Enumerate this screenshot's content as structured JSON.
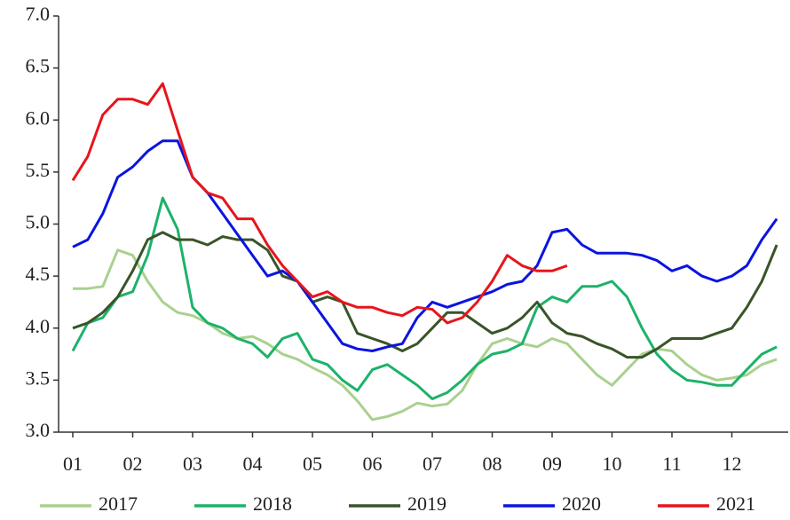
{
  "chart_data": {
    "type": "line",
    "categories": [
      "01",
      null,
      null,
      null,
      "02",
      null,
      null,
      null,
      "03",
      null,
      null,
      null,
      "04",
      null,
      null,
      null,
      "05",
      null,
      null,
      null,
      "06",
      null,
      null,
      null,
      "07",
      null,
      null,
      null,
      "08",
      null,
      null,
      null,
      "09",
      null,
      null,
      null,
      "10",
      null,
      null,
      null,
      "11",
      null,
      null,
      null,
      "12",
      null,
      null,
      null
    ],
    "ylim": [
      3,
      7
    ],
    "yticks": [
      {
        "value": 3,
        "label": "3.0"
      },
      3.5,
      {
        "value": 4,
        "label": "4.0"
      },
      4.5,
      {
        "value": 5,
        "label": "5.0"
      },
      5.5,
      {
        "value": 6,
        "label": "6.0"
      },
      6.5,
      {
        "value": 7,
        "label": "7.0"
      }
    ],
    "legend": "bottom",
    "series": [
      {
        "name": "2017",
        "color": "#a9d18e",
        "values": [
          4.38,
          4.38,
          4.4,
          4.75,
          4.7,
          4.45,
          4.25,
          4.15,
          4.12,
          4.05,
          3.95,
          3.9,
          3.92,
          3.85,
          3.75,
          3.7,
          3.62,
          3.55,
          3.45,
          3.3,
          3.12,
          3.15,
          3.2,
          3.28,
          3.25,
          3.27,
          3.4,
          3.65,
          3.85,
          3.9,
          3.85,
          3.82,
          3.9,
          3.85,
          3.7,
          3.55,
          3.45,
          3.6,
          3.75,
          3.8,
          3.78,
          3.65,
          3.55,
          3.5,
          3.52,
          3.55,
          3.65,
          3.7
        ]
      },
      {
        "name": "2018",
        "color": "#1db26a",
        "values": [
          3.78,
          4.05,
          4.1,
          4.3,
          4.35,
          4.7,
          5.25,
          4.95,
          4.2,
          4.05,
          4.0,
          3.9,
          3.85,
          3.72,
          3.9,
          3.95,
          3.7,
          3.65,
          3.5,
          3.4,
          3.6,
          3.65,
          3.55,
          3.45,
          3.32,
          3.38,
          3.5,
          3.65,
          3.75,
          3.78,
          3.85,
          4.2,
          4.3,
          4.25,
          4.4,
          4.4,
          4.45,
          4.3,
          4.0,
          3.75,
          3.6,
          3.5,
          3.48,
          3.45,
          3.45,
          3.6,
          3.75,
          3.82
        ]
      },
      {
        "name": "2019",
        "color": "#3a5428",
        "values": [
          4.0,
          4.05,
          4.15,
          4.3,
          4.55,
          4.85,
          4.92,
          4.85,
          4.85,
          4.8,
          4.88,
          4.85,
          4.85,
          4.75,
          4.5,
          4.45,
          4.25,
          4.3,
          4.25,
          3.95,
          3.9,
          3.85,
          3.78,
          3.85,
          4.0,
          4.15,
          4.15,
          4.05,
          3.95,
          4.0,
          4.1,
          4.25,
          4.05,
          3.95,
          3.92,
          3.85,
          3.8,
          3.72,
          3.72,
          3.8,
          3.9,
          3.9,
          3.9,
          3.95,
          4.0,
          4.2,
          4.45,
          4.8
        ]
      },
      {
        "name": "2020",
        "color": "#0a14e0",
        "values": [
          4.78,
          4.85,
          5.1,
          5.45,
          5.55,
          5.7,
          5.8,
          5.8,
          5.45,
          5.3,
          5.1,
          4.9,
          4.7,
          4.5,
          4.55,
          4.45,
          4.25,
          4.05,
          3.85,
          3.8,
          3.78,
          3.82,
          3.85,
          4.1,
          4.25,
          4.2,
          4.25,
          4.3,
          4.35,
          4.42,
          4.45,
          4.6,
          4.92,
          4.95,
          4.8,
          4.72,
          4.72,
          4.72,
          4.7,
          4.65,
          4.55,
          4.6,
          4.5,
          4.45,
          4.5,
          4.6,
          4.85,
          5.05
        ]
      },
      {
        "name": "2021",
        "color": "#e8141c",
        "values": [
          5.42,
          5.65,
          6.05,
          6.2,
          6.2,
          6.15,
          6.35,
          5.9,
          5.45,
          5.3,
          5.25,
          5.05,
          5.05,
          4.8,
          4.6,
          4.45,
          4.3,
          4.35,
          4.25,
          4.2,
          4.2,
          4.15,
          4.12,
          4.2,
          4.18,
          4.05,
          4.1,
          4.25,
          4.45,
          4.7,
          4.6,
          4.55,
          4.55,
          4.6,
          null,
          null,
          null,
          null,
          null,
          null,
          null,
          null,
          null,
          null,
          null,
          null,
          null,
          null
        ]
      }
    ]
  }
}
